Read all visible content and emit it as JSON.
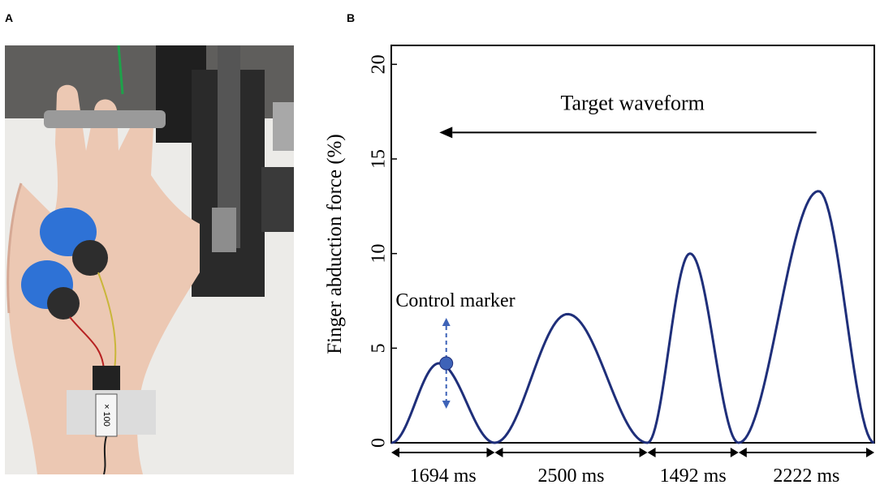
{
  "panels": {
    "a_label": "A",
    "b_label": "B"
  },
  "photo": {
    "description_icon": "hand-electrode-photo",
    "amplifier_label": "× 100"
  },
  "chart_data": {
    "type": "line",
    "ylabel": "Finger abduction force (%)",
    "xlabel": "",
    "ylim": [
      0,
      21
    ],
    "yticks": [
      0,
      5,
      10,
      15,
      20
    ],
    "grid": false,
    "legend": "none",
    "line_color": "#1f2f7a",
    "marker_color": "#3e63b8",
    "segments": [
      {
        "duration_ms": 1694,
        "label": "1694 ms",
        "peak": 4.2
      },
      {
        "duration_ms": 2500,
        "label": "2500 ms",
        "peak": 6.8
      },
      {
        "duration_ms": 1492,
        "label": "1492 ms",
        "peak": 10.0
      },
      {
        "duration_ms": 2222,
        "label": "2222 ms",
        "peak": 13.3
      }
    ],
    "peak_times_ms": [
      780,
      2886,
      4890,
      6995
    ],
    "annotations": {
      "target": "Target waveform",
      "control": "Control marker",
      "control_marker": {
        "t_ms": 900,
        "y": 4.2
      }
    }
  }
}
